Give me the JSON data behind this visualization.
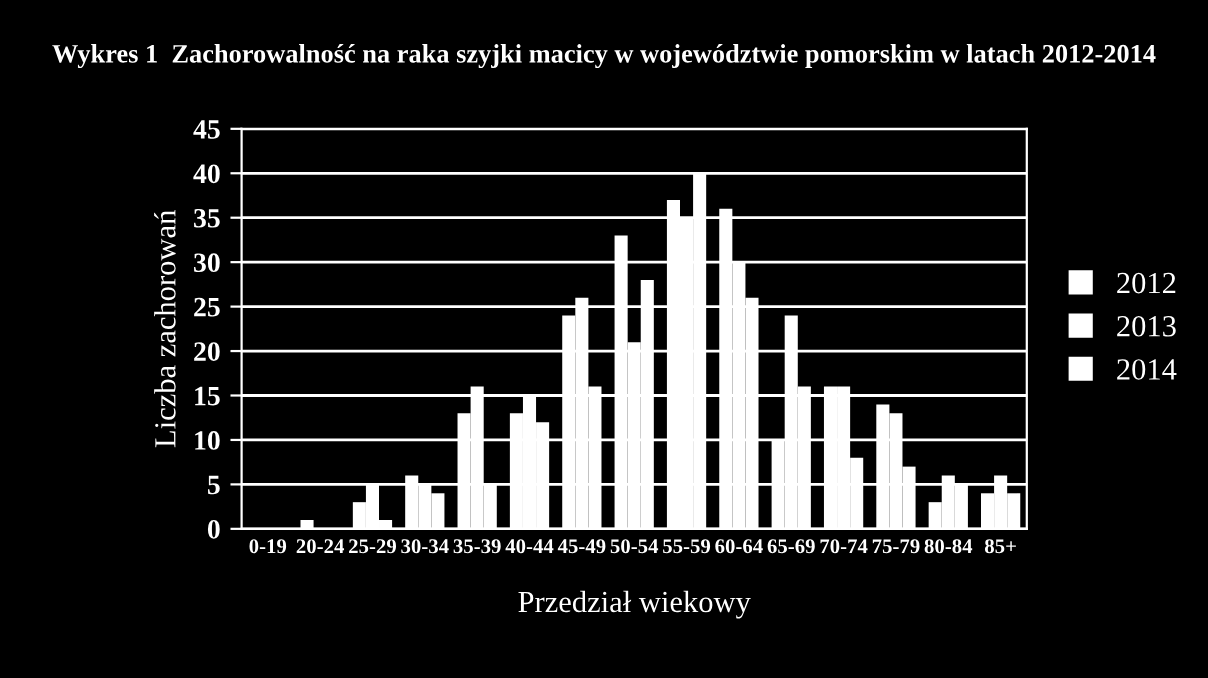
{
  "chart_data": {
    "type": "bar",
    "title": "Wykres 1  Zachorowalność na raka szyjki macicy w województwie pomorskim w latach 2012-2014",
    "xlabel": "Przedział wiekowy",
    "ylabel": "Liczba zachorowań",
    "categories": [
      "0-19",
      "20-24",
      "25-29",
      "30-34",
      "35-39",
      "40-44",
      "45-49",
      "50-54",
      "55-59",
      "60-64",
      "65-69",
      "70-74",
      "75-79",
      "80-84",
      "85+"
    ],
    "series": [
      {
        "name": "2012",
        "color": "#ffffff",
        "values": [
          0,
          1,
          3,
          6,
          13,
          13,
          24,
          33,
          37,
          36,
          10,
          16,
          14,
          3,
          4
        ]
      },
      {
        "name": "2013",
        "color": "#ffffff",
        "values": [
          0,
          0,
          5,
          5,
          16,
          15,
          26,
          21,
          35,
          30,
          24,
          16,
          13,
          6,
          6
        ]
      },
      {
        "name": "2014",
        "color": "#ffffff",
        "values": [
          0,
          0,
          1,
          4,
          5,
          12,
          16,
          28,
          40,
          26,
          16,
          8,
          7,
          5,
          4
        ]
      }
    ],
    "ylim": [
      0,
      45
    ],
    "yticks": [
      0,
      5,
      10,
      15,
      20,
      25,
      30,
      35,
      40,
      45
    ],
    "grid": "y",
    "legend": "right"
  }
}
